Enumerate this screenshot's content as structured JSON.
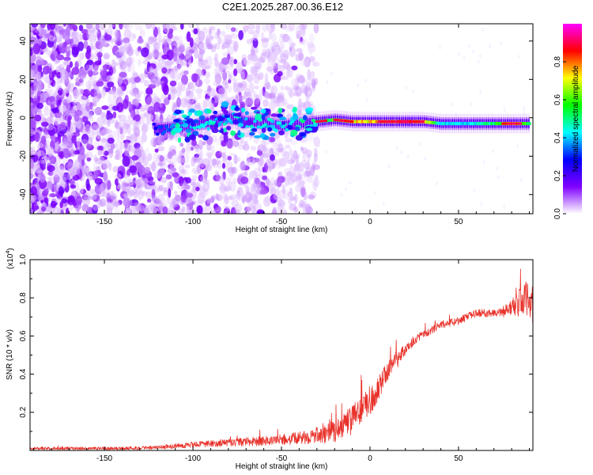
{
  "title": "C2E1.2025.287.00.36.E12",
  "chart_data": [
    {
      "type": "heatmap",
      "xlabel": "Height of straight line (km)",
      "ylabel": "Frequency (Hz)",
      "xlim": [
        -192,
        92
      ],
      "ylim": [
        -50,
        49
      ],
      "xticks": [
        "-150",
        "-100",
        "-50",
        "0",
        "50"
      ],
      "xtick_values": [
        -150,
        -100,
        -50,
        0,
        50
      ],
      "yticks": [
        "-40",
        "-20",
        "0",
        "20",
        "40"
      ],
      "ytick_values": [
        -40,
        -20,
        0,
        20,
        40
      ],
      "colorbar": {
        "label": "Normalized spectral amplitude",
        "range": [
          0,
          1
        ],
        "ticks": [
          "0.0",
          "0.2",
          "0.4",
          "0.6",
          "0.8"
        ],
        "tick_values": [
          0.0,
          0.2,
          0.4,
          0.6,
          0.8
        ],
        "colors": [
          "#ffffff",
          "#8000ff",
          "#0000ff",
          "#00ffff",
          "#00ff00",
          "#ffff00",
          "#ff0000",
          "#ff00ff"
        ]
      },
      "ridge": {
        "description": "dominant signal near 0 Hz",
        "x": [
          -122,
          -110,
          -100,
          -90,
          -80,
          -70,
          -60,
          -50,
          -40,
          -30,
          -20,
          -10,
          0,
          10,
          20,
          30,
          40,
          50,
          60,
          70,
          80,
          90
        ],
        "freq": [
          -6,
          -5,
          -4,
          -2,
          0,
          -2,
          -3,
          -4,
          -3,
          -2,
          -1,
          -2,
          -2,
          -2,
          -2,
          -2,
          -3,
          -3,
          -3,
          -3,
          -3,
          -3
        ],
        "amplitude": [
          0.3,
          0.4,
          0.45,
          0.45,
          0.45,
          0.45,
          0.45,
          0.45,
          0.5,
          0.5,
          0.6,
          0.75,
          0.75,
          0.8,
          0.9,
          0.8,
          0.45,
          0.45,
          0.45,
          0.55,
          0.8,
          0.6
        ]
      },
      "noise_extent_x": [
        -192,
        -40
      ]
    },
    {
      "type": "line",
      "xlabel": "Height of straight line (km)",
      "ylabel": "SNR (10 * v/v)",
      "y_multiplier": "(x10",
      "y_multiplier_exp": "4",
      "y_multiplier_close": ")",
      "xlim": [
        -192,
        92
      ],
      "ylim": [
        0.0,
        1.0
      ],
      "xticks": [
        "-150",
        "-100",
        "-50",
        "0",
        "50"
      ],
      "xtick_values": [
        -150,
        -100,
        -50,
        0,
        50
      ],
      "yticks": [
        "0.2",
        "0.4",
        "0.6",
        "0.8",
        "1.0"
      ],
      "ytick_values": [
        0.2,
        0.4,
        0.6,
        0.8,
        1.0
      ],
      "color": "#e8312a",
      "series": [
        {
          "name": "SNR",
          "x": [
            -192,
            -150,
            -120,
            -100,
            -80,
            -60,
            -45,
            -35,
            -25,
            -20,
            -10,
            0,
            5,
            10,
            15,
            20,
            25,
            30,
            35,
            40,
            50,
            55,
            60,
            70,
            75,
            80,
            85,
            90,
            92
          ],
          "y": [
            0.01,
            0.01,
            0.015,
            0.03,
            0.04,
            0.05,
            0.06,
            0.07,
            0.09,
            0.1,
            0.17,
            0.25,
            0.33,
            0.42,
            0.48,
            0.53,
            0.58,
            0.61,
            0.63,
            0.66,
            0.68,
            0.7,
            0.72,
            0.72,
            0.73,
            0.75,
            0.78,
            0.8,
            0.75
          ],
          "noise_scale": [
            0.008,
            0.008,
            0.01,
            0.015,
            0.02,
            0.025,
            0.03,
            0.035,
            0.05,
            0.06,
            0.07,
            0.07,
            0.06,
            0.05,
            0.04,
            0.03,
            0.025,
            0.02,
            0.02,
            0.02,
            0.02,
            0.02,
            0.02,
            0.02,
            0.025,
            0.04,
            0.08,
            0.1,
            0.1
          ]
        }
      ]
    }
  ]
}
